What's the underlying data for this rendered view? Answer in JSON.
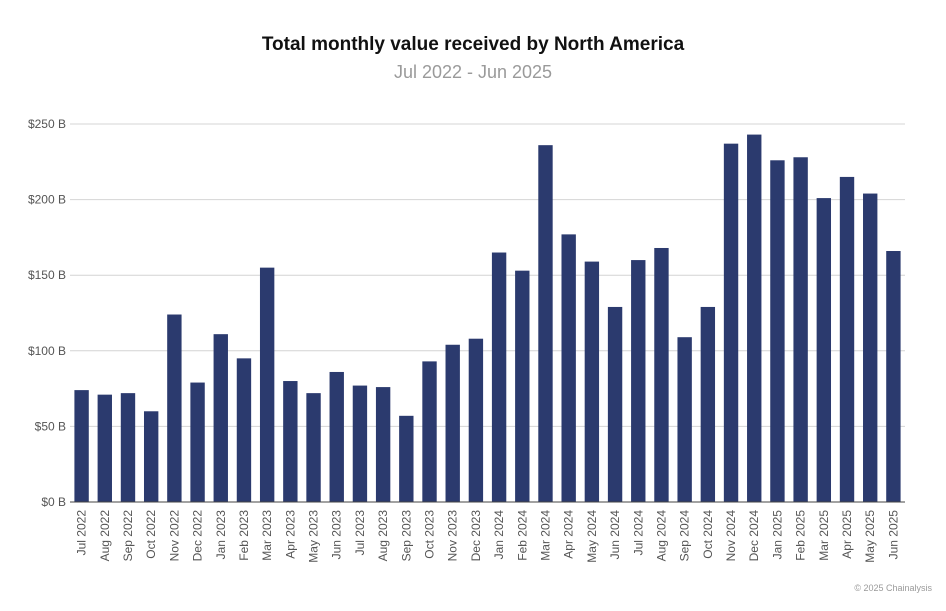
{
  "chart_data": {
    "type": "bar",
    "title": "Total monthly value received by North America",
    "subtitle": "Jul 2022 - Jun 2025",
    "xlabel": "",
    "ylabel": "",
    "ylim": [
      0,
      250
    ],
    "yticks": [
      0,
      50,
      100,
      150,
      200,
      250
    ],
    "ytick_labels": [
      "$0 B",
      "$50 B",
      "$100 B",
      "$150 B",
      "$200 B",
      "$250 B"
    ],
    "grid": true,
    "bar_color": "#2b3a6e",
    "categories": [
      "Jul 2022",
      "Aug 2022",
      "Sep 2022",
      "Oct 2022",
      "Nov 2022",
      "Dec 2022",
      "Jan 2023",
      "Feb 2023",
      "Mar 2023",
      "Apr 2023",
      "May 2023",
      "Jun 2023",
      "Jul 2023",
      "Aug 2023",
      "Sep 2023",
      "Oct 2023",
      "Nov 2023",
      "Dec 2023",
      "Jan 2024",
      "Feb 2024",
      "Mar 2024",
      "Apr 2024",
      "May 2024",
      "Jun 2024",
      "Jul 2024",
      "Aug 2024",
      "Sep 2024",
      "Oct 2024",
      "Nov 2024",
      "Dec 2024",
      "Jan 2025",
      "Feb 2025",
      "Mar 2025",
      "Apr 2025",
      "May 2025",
      "Jun 2025"
    ],
    "values": [
      74,
      71,
      72,
      60,
      124,
      79,
      111,
      95,
      155,
      80,
      72,
      86,
      77,
      76,
      57,
      93,
      104,
      108,
      165,
      153,
      236,
      177,
      159,
      129,
      160,
      168,
      109,
      129,
      237,
      243,
      226,
      228,
      201,
      215,
      204,
      166
    ]
  },
  "credit": "© 2025 Chainalysis"
}
